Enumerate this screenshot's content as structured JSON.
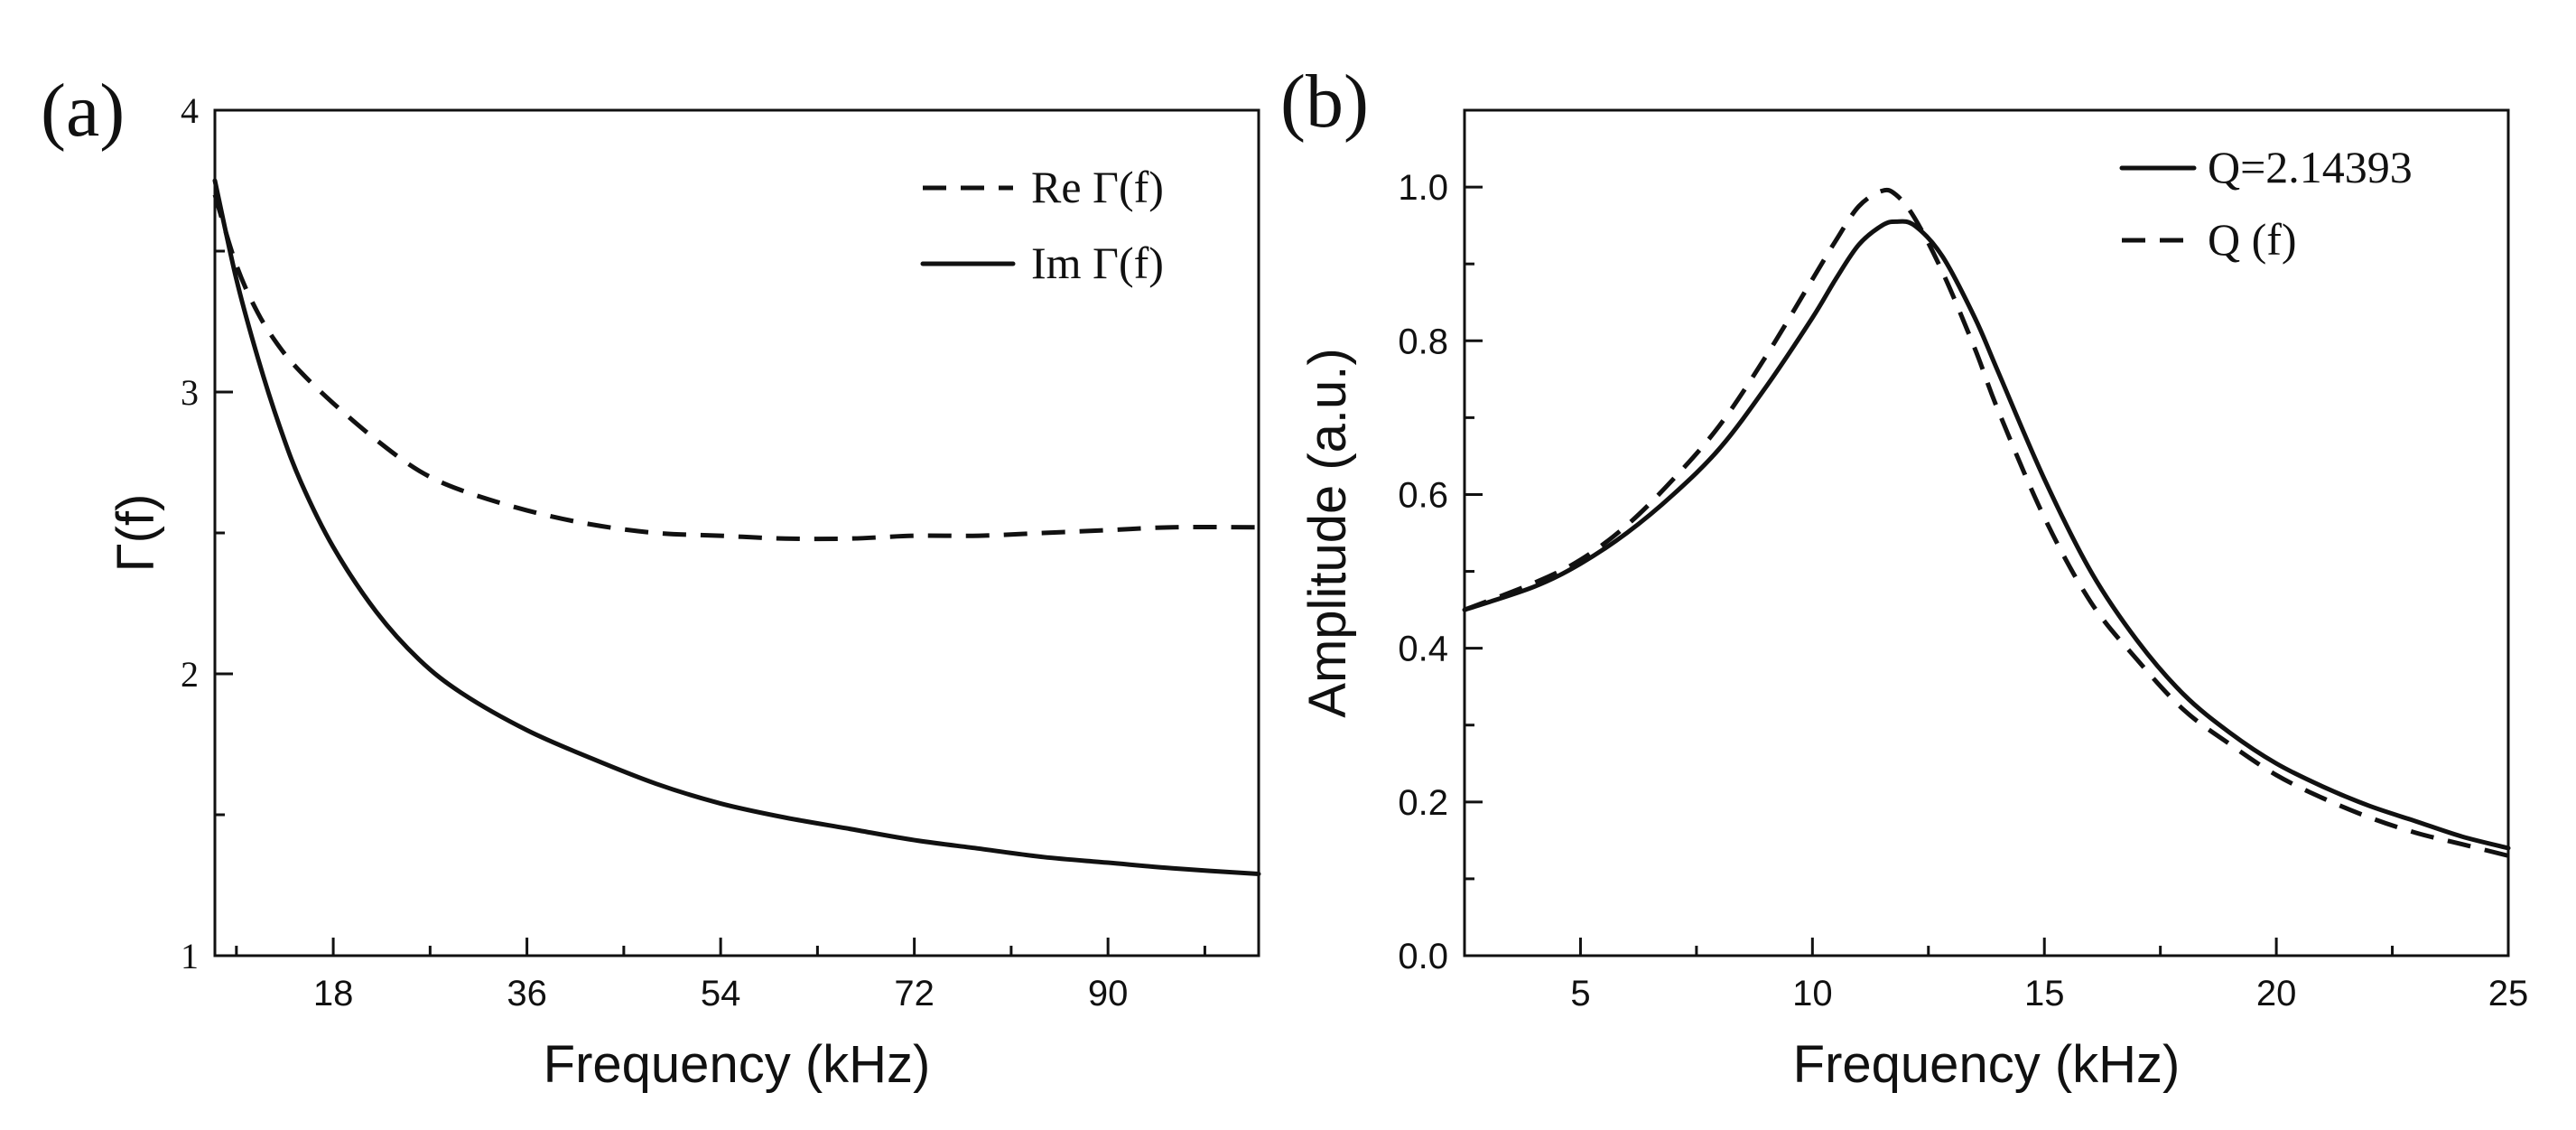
{
  "chart_data": [
    {
      "panel": "(a)",
      "type": "line",
      "title": "",
      "xlabel": "Frequency (kHz)",
      "ylabel": "Γ(f)",
      "xlim": [
        7,
        104
      ],
      "ylim": [
        1,
        4
      ],
      "xticks": [
        18,
        36,
        54,
        72,
        90
      ],
      "yticks": [
        1,
        2,
        3,
        4
      ],
      "legend_position": "top-right",
      "series": [
        {
          "name": "Re Γ(f)",
          "style": "dashed",
          "x": [
            7,
            9,
            11,
            13,
            15,
            18,
            22,
            26,
            30,
            36,
            42,
            48,
            54,
            60,
            66,
            72,
            78,
            84,
            90,
            96,
            104
          ],
          "y": [
            3.7,
            3.45,
            3.28,
            3.16,
            3.07,
            2.96,
            2.83,
            2.72,
            2.65,
            2.58,
            2.53,
            2.5,
            2.49,
            2.48,
            2.48,
            2.49,
            2.49,
            2.5,
            2.51,
            2.52,
            2.52
          ]
        },
        {
          "name": "Im Γ(f)",
          "style": "solid",
          "x": [
            7,
            9,
            11,
            13,
            15,
            18,
            22,
            26,
            30,
            36,
            42,
            48,
            54,
            60,
            66,
            72,
            78,
            84,
            90,
            96,
            104
          ],
          "y": [
            3.75,
            3.4,
            3.12,
            2.88,
            2.68,
            2.45,
            2.22,
            2.05,
            1.93,
            1.8,
            1.7,
            1.61,
            1.54,
            1.49,
            1.45,
            1.41,
            1.38,
            1.35,
            1.33,
            1.31,
            1.29
          ]
        }
      ]
    },
    {
      "panel": "(b)",
      "type": "line",
      "title": "",
      "xlabel": "Frequency (kHz)",
      "ylabel": "Amplitude (a.u.)",
      "xlim": [
        2.5,
        25
      ],
      "ylim": [
        0,
        1.1
      ],
      "xticks": [
        5,
        10,
        15,
        20,
        25
      ],
      "yticks": [
        0.0,
        0.2,
        0.4,
        0.6,
        0.8,
        1.0
      ],
      "ytick_labels": [
        "0.0",
        "0.2",
        "0.4",
        "0.6",
        "0.8",
        "1.0"
      ],
      "legend_position": "top-right",
      "series": [
        {
          "name": "Q=2.14393",
          "style": "solid",
          "x": [
            2.5,
            4,
            5,
            6,
            7,
            8,
            9,
            10,
            10.5,
            11,
            11.5,
            11.8,
            12.2,
            12.8,
            13.5,
            14,
            15,
            16,
            17,
            18,
            19,
            20,
            21,
            22,
            23,
            24,
            25
          ],
          "y": [
            0.45,
            0.48,
            0.51,
            0.55,
            0.6,
            0.66,
            0.74,
            0.83,
            0.88,
            0.925,
            0.95,
            0.955,
            0.95,
            0.91,
            0.83,
            0.76,
            0.62,
            0.5,
            0.41,
            0.34,
            0.29,
            0.25,
            0.22,
            0.195,
            0.175,
            0.155,
            0.14
          ]
        },
        {
          "name": "Q (f)",
          "style": "dashed",
          "x": [
            2.5,
            4,
            5,
            6,
            7,
            8,
            9,
            10,
            10.5,
            11,
            11.5,
            11.8,
            12.2,
            12.8,
            13.5,
            14,
            15,
            16,
            17,
            18,
            19,
            20,
            21,
            22,
            23,
            24,
            25
          ],
          "y": [
            0.45,
            0.485,
            0.515,
            0.56,
            0.62,
            0.69,
            0.78,
            0.88,
            0.93,
            0.975,
            0.995,
            0.99,
            0.96,
            0.89,
            0.79,
            0.71,
            0.57,
            0.46,
            0.385,
            0.32,
            0.275,
            0.235,
            0.205,
            0.18,
            0.16,
            0.145,
            0.13
          ]
        }
      ]
    }
  ]
}
